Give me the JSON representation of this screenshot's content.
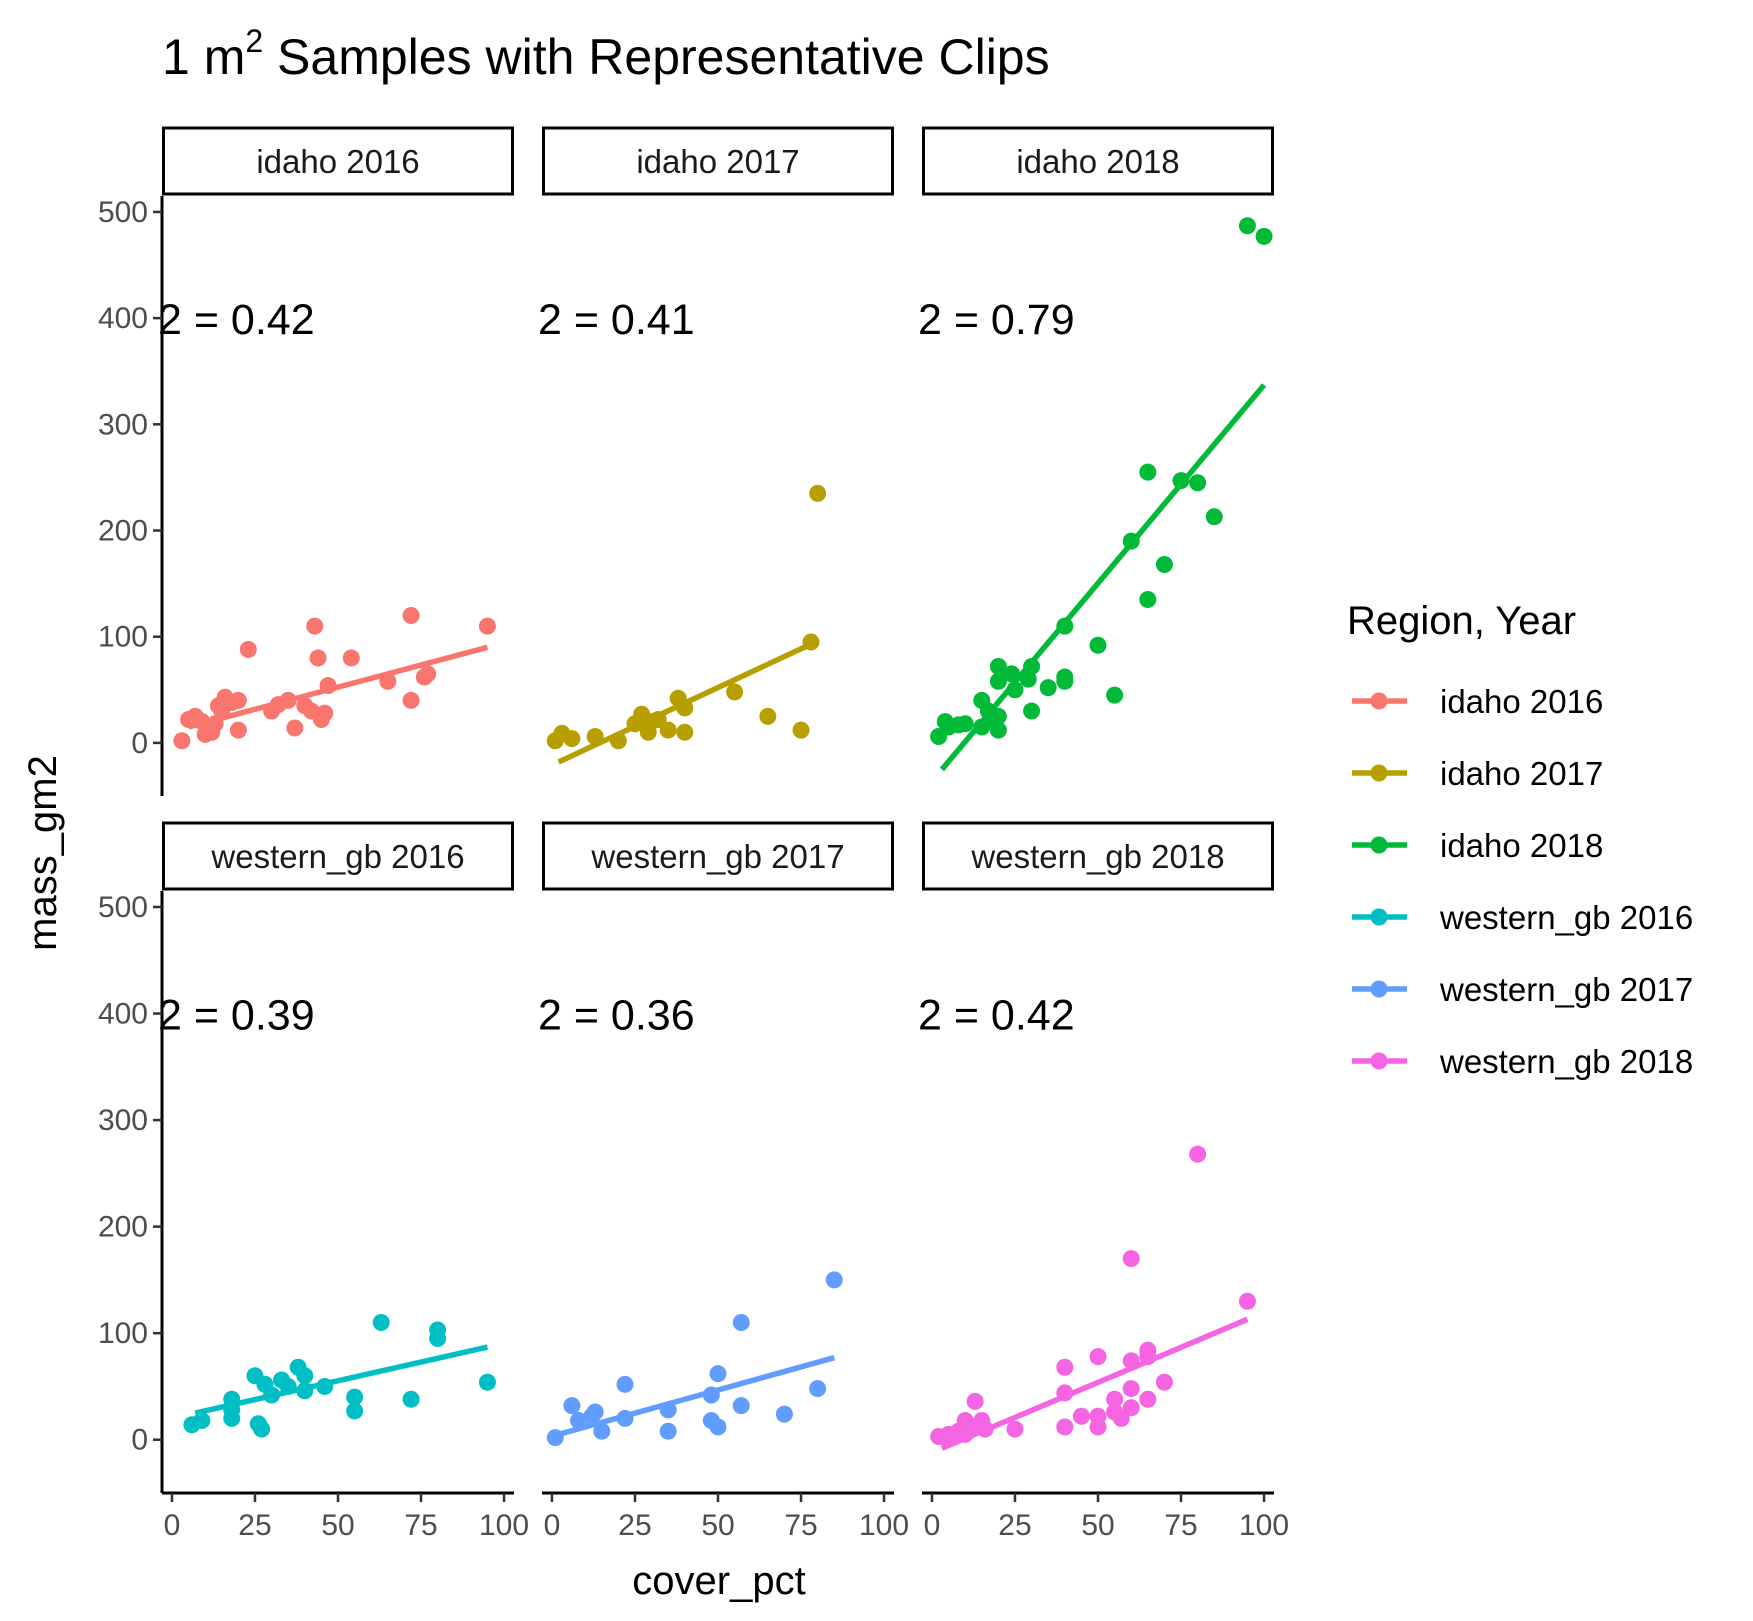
{
  "chart_data": {
    "type": "scatter",
    "title_main": "1  m",
    "title_sup": "2",
    "title_rest": "  Samples  with  Representative  Clips",
    "xlabel": "cover_pct",
    "ylabel": "mass_gm2",
    "xlim": [
      -3,
      103
    ],
    "ylim": [
      -50,
      515
    ],
    "xticks": [
      0,
      25,
      50,
      75,
      100
    ],
    "yticks": [
      0,
      100,
      200,
      300,
      400,
      500
    ],
    "grid": false,
    "legend": {
      "title": "Region, Year",
      "position": "right",
      "entries": [
        "idaho 2016",
        "idaho 2017",
        "idaho 2018",
        "western_gb 2016",
        "western_gb 2017",
        "western_gb 2018"
      ]
    },
    "panels": [
      {
        "label": "idaho 2016",
        "color": "#F8766D",
        "r2_text": "2 = 0.42",
        "fit": {
          "x": [
            5,
            95
          ],
          "y": [
            15,
            90
          ]
        },
        "points": [
          [
            3,
            2
          ],
          [
            5,
            22
          ],
          [
            7,
            25
          ],
          [
            9,
            20
          ],
          [
            10,
            8
          ],
          [
            11,
            12
          ],
          [
            12,
            10
          ],
          [
            13,
            18
          ],
          [
            14,
            35
          ],
          [
            15,
            30
          ],
          [
            16,
            43
          ],
          [
            18,
            38
          ],
          [
            20,
            40
          ],
          [
            20,
            12
          ],
          [
            23,
            88
          ],
          [
            30,
            30
          ],
          [
            32,
            36
          ],
          [
            35,
            40
          ],
          [
            37,
            14
          ],
          [
            40,
            35
          ],
          [
            42,
            30
          ],
          [
            43,
            110
          ],
          [
            44,
            80
          ],
          [
            45,
            22
          ],
          [
            46,
            28
          ],
          [
            47,
            54
          ],
          [
            54,
            80
          ],
          [
            65,
            58
          ],
          [
            72,
            40
          ],
          [
            72,
            120
          ],
          [
            76,
            62
          ],
          [
            77,
            65
          ],
          [
            95,
            110
          ]
        ]
      },
      {
        "label": "idaho 2017",
        "color": "#B79F00",
        "r2_text": "2 = 0.41",
        "fit": {
          "x": [
            2,
            78
          ],
          "y": [
            -18,
            93
          ]
        },
        "points": [
          [
            1,
            2
          ],
          [
            3,
            9
          ],
          [
            6,
            4
          ],
          [
            13,
            6
          ],
          [
            20,
            2
          ],
          [
            25,
            18
          ],
          [
            27,
            27
          ],
          [
            29,
            10
          ],
          [
            30,
            20
          ],
          [
            32,
            22
          ],
          [
            35,
            12
          ],
          [
            38,
            42
          ],
          [
            40,
            33
          ],
          [
            40,
            10
          ],
          [
            55,
            48
          ],
          [
            65,
            25
          ],
          [
            75,
            12
          ],
          [
            78,
            95
          ],
          [
            80,
            235
          ]
        ]
      },
      {
        "label": "idaho 2018",
        "color": "#00BA38",
        "r2_text": "2 = 0.79",
        "fit": {
          "x": [
            3,
            100
          ],
          "y": [
            -25,
            337
          ]
        },
        "points": [
          [
            2,
            6
          ],
          [
            4,
            20
          ],
          [
            5,
            15
          ],
          [
            8,
            17
          ],
          [
            10,
            18
          ],
          [
            15,
            40
          ],
          [
            15,
            15
          ],
          [
            17,
            30
          ],
          [
            18,
            20
          ],
          [
            20,
            72
          ],
          [
            20,
            58
          ],
          [
            20,
            25
          ],
          [
            20,
            12
          ],
          [
            24,
            65
          ],
          [
            25,
            50
          ],
          [
            29,
            60
          ],
          [
            30,
            72
          ],
          [
            30,
            30
          ],
          [
            35,
            52
          ],
          [
            40,
            110
          ],
          [
            40,
            62
          ],
          [
            40,
            58
          ],
          [
            50,
            92
          ],
          [
            55,
            45
          ],
          [
            60,
            190
          ],
          [
            65,
            255
          ],
          [
            65,
            135
          ],
          [
            70,
            168
          ],
          [
            75,
            247
          ],
          [
            80,
            245
          ],
          [
            85,
            213
          ],
          [
            95,
            487
          ],
          [
            100,
            477
          ]
        ]
      },
      {
        "label": "western_gb 2016",
        "color": "#00BFC4",
        "r2_text": "2 = 0.39",
        "fit": {
          "x": [
            7,
            95
          ],
          "y": [
            25,
            87
          ]
        },
        "points": [
          [
            6,
            14
          ],
          [
            9,
            18
          ],
          [
            18,
            38
          ],
          [
            18,
            20
          ],
          [
            18,
            28
          ],
          [
            25,
            60
          ],
          [
            26,
            15
          ],
          [
            27,
            10
          ],
          [
            28,
            52
          ],
          [
            30,
            42
          ],
          [
            33,
            56
          ],
          [
            35,
            50
          ],
          [
            38,
            68
          ],
          [
            40,
            60
          ],
          [
            40,
            46
          ],
          [
            46,
            50
          ],
          [
            55,
            40
          ],
          [
            55,
            27
          ],
          [
            63,
            110
          ],
          [
            72,
            38
          ],
          [
            80,
            103
          ],
          [
            80,
            95
          ],
          [
            95,
            54
          ]
        ]
      },
      {
        "label": "western_gb 2017",
        "color": "#619CFF",
        "r2_text": "2 = 0.36",
        "fit": {
          "x": [
            2,
            85
          ],
          "y": [
            5,
            77
          ]
        },
        "points": [
          [
            1,
            2
          ],
          [
            6,
            32
          ],
          [
            8,
            18
          ],
          [
            12,
            22
          ],
          [
            13,
            26
          ],
          [
            15,
            8
          ],
          [
            22,
            52
          ],
          [
            22,
            20
          ],
          [
            35,
            28
          ],
          [
            35,
            8
          ],
          [
            48,
            42
          ],
          [
            48,
            18
          ],
          [
            50,
            62
          ],
          [
            50,
            12
          ],
          [
            57,
            110
          ],
          [
            57,
            32
          ],
          [
            70,
            24
          ],
          [
            80,
            48
          ],
          [
            85,
            150
          ]
        ]
      },
      {
        "label": "western_gb 2018",
        "color": "#F564E3",
        "r2_text": "2 = 0.42",
        "fit": {
          "x": [
            3,
            95
          ],
          "y": [
            -8,
            113
          ]
        },
        "points": [
          [
            2,
            3
          ],
          [
            4,
            2
          ],
          [
            5,
            5
          ],
          [
            6,
            2
          ],
          [
            8,
            8
          ],
          [
            10,
            18
          ],
          [
            10,
            5
          ],
          [
            12,
            12
          ],
          [
            13,
            36
          ],
          [
            15,
            18
          ],
          [
            16,
            10
          ],
          [
            25,
            10
          ],
          [
            40,
            68
          ],
          [
            40,
            44
          ],
          [
            40,
            12
          ],
          [
            45,
            22
          ],
          [
            50,
            78
          ],
          [
            50,
            22
          ],
          [
            50,
            12
          ],
          [
            55,
            38
          ],
          [
            55,
            26
          ],
          [
            57,
            20
          ],
          [
            60,
            170
          ],
          [
            60,
            74
          ],
          [
            60,
            48
          ],
          [
            60,
            30
          ],
          [
            65,
            84
          ],
          [
            65,
            78
          ],
          [
            65,
            38
          ],
          [
            70,
            54
          ],
          [
            80,
            268
          ],
          [
            95,
            130
          ]
        ]
      }
    ]
  }
}
